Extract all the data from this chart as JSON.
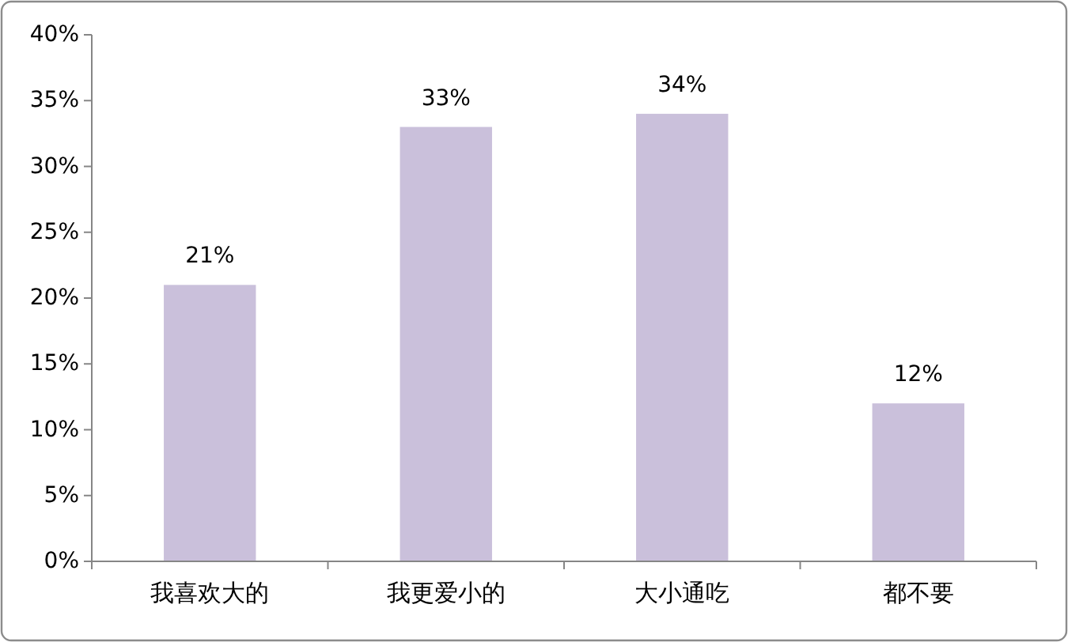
{
  "chart_data": {
    "type": "bar",
    "categories": [
      "我喜欢大的",
      "我更爱小的",
      "大小通吃",
      "都不要"
    ],
    "values": [
      21,
      33,
      34,
      12
    ],
    "color": "#cac0db",
    "value_labels": [
      "21%",
      "33%",
      "34%",
      "12%"
    ],
    "ylim": [
      0,
      40
    ],
    "yticks": [
      {
        "value": 0,
        "label": "0%"
      },
      {
        "value": 5,
        "label": "5%"
      },
      {
        "value": 10,
        "label": "10%"
      },
      {
        "value": 15,
        "label": "15%"
      },
      {
        "value": 20,
        "label": "20%"
      },
      {
        "value": 25,
        "label": "25%"
      },
      {
        "value": 30,
        "label": "30%"
      },
      {
        "value": 35,
        "label": "35%"
      },
      {
        "value": 40,
        "label": "40%"
      }
    ],
    "grid": false
  }
}
